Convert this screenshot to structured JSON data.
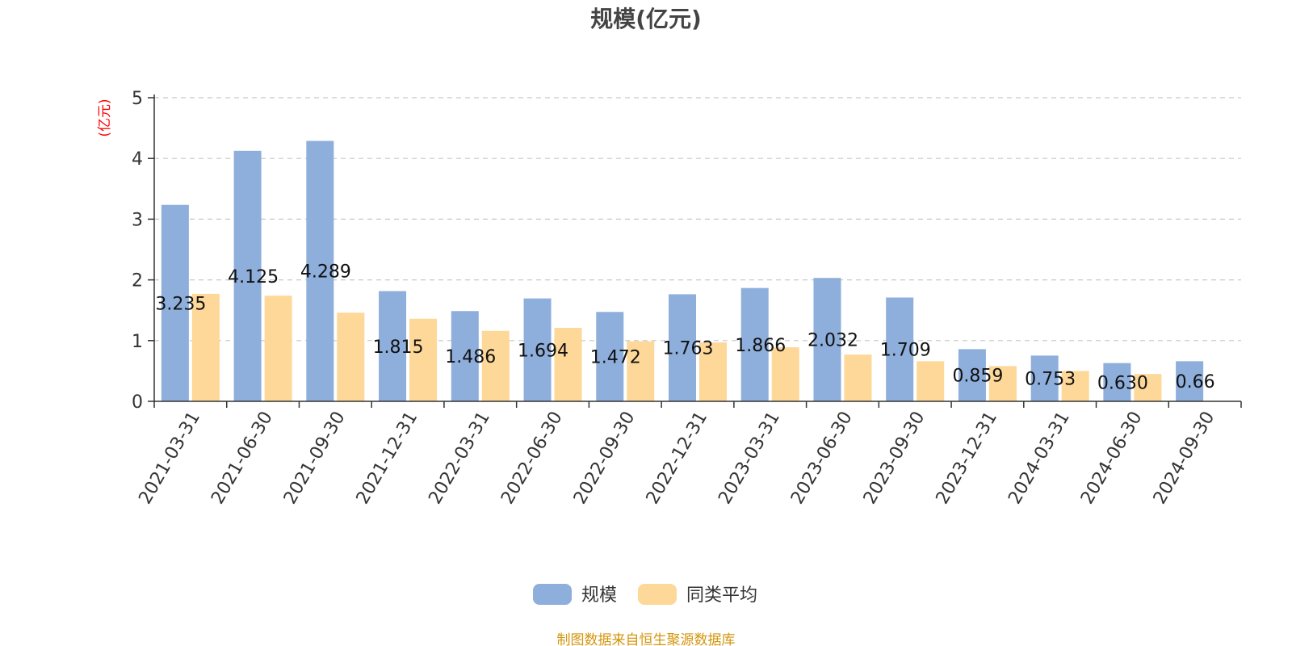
{
  "chart_data": {
    "type": "bar",
    "title": "规模(亿元)",
    "unit_label": "(亿元)",
    "categories": [
      "2021-03-31",
      "2021-06-30",
      "2021-09-30",
      "2021-12-31",
      "2022-03-31",
      "2022-06-30",
      "2022-09-30",
      "2022-12-31",
      "2023-03-31",
      "2023-06-30",
      "2023-09-30",
      "2023-12-31",
      "2024-03-31",
      "2024-06-30",
      "2024-09-30"
    ],
    "series": [
      {
        "name": "规模",
        "color": "#8eaedb",
        "values": [
          3.235,
          4.125,
          4.289,
          1.815,
          1.486,
          1.694,
          1.472,
          1.763,
          1.866,
          2.032,
          1.709,
          0.859,
          0.753,
          0.63,
          0.66
        ],
        "labels": [
          "3.235",
          "4.125",
          "4.289",
          "1.815",
          "1.486",
          "1.694",
          "1.472",
          "1.763",
          "1.866",
          "2.032",
          "1.709",
          "0.859",
          "0.753",
          "0.630",
          "0.66"
        ]
      },
      {
        "name": "同类平均",
        "color": "#fdd898",
        "values": [
          1.77,
          1.74,
          1.46,
          1.36,
          1.16,
          1.21,
          0.99,
          0.97,
          0.89,
          0.77,
          0.66,
          0.58,
          0.5,
          0.45,
          null
        ]
      }
    ],
    "yticks": [
      "0",
      "1",
      "2",
      "3",
      "4",
      "5"
    ],
    "ylim": [
      0,
      5
    ],
    "grid": true,
    "legend_position": "bottom-center",
    "source_note": "制图数据来自恒生聚源数据库"
  }
}
